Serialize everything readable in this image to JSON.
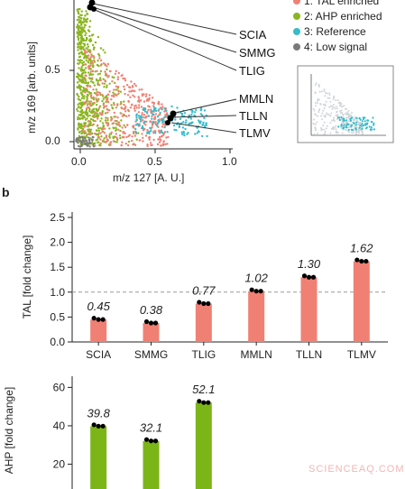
{
  "panel_b_letter": "b",
  "scatter": {
    "xlabel": "m/z 127 [A. U.]",
    "ylabel": "m/z 169 [arb. units]",
    "xticks": [
      "0.0",
      "0.5",
      "1.0"
    ],
    "yticks": [
      "0.0",
      "0.5"
    ],
    "callouts_top": [
      "SCIA",
      "SMMG",
      "TLIG"
    ],
    "callouts_bottom": [
      "MMLN",
      "TLLN",
      "TLMV"
    ],
    "legend": [
      {
        "label": "1: TAL enriched",
        "color": "#f08074"
      },
      {
        "label": "2: AHP enriched",
        "color": "#8ab51f"
      },
      {
        "label": "3: Reference",
        "color": "#36bccb"
      },
      {
        "label": "4: Low signal",
        "color": "#7a7a7a"
      }
    ]
  },
  "chart_data": [
    {
      "type": "bar",
      "ylabel": "TAL [fold change]",
      "categories": [
        "SCIA",
        "SMMG",
        "TLIG",
        "MMLN",
        "TLLN",
        "TLMV"
      ],
      "values": [
        0.45,
        0.38,
        0.77,
        1.02,
        1.3,
        1.62
      ],
      "value_labels": [
        "0.45",
        "0.38",
        "0.77",
        "1.02",
        "1.30",
        "1.62"
      ],
      "ylim": [
        0,
        2.5
      ],
      "yticks": [
        "0.0",
        "0.5",
        "1.0",
        "1.5",
        "2.0",
        "2.5"
      ],
      "reference_line": 1.0,
      "color": "#f08074"
    },
    {
      "type": "bar",
      "ylabel": "AHP [fold change]",
      "values": [
        39.8,
        32.1,
        52.1
      ],
      "value_labels": [
        "39.8",
        "32.1",
        "52.1"
      ],
      "yticks": [
        "20",
        "40",
        "60"
      ],
      "color": "#7cb518"
    }
  ],
  "watermark": "SCIENCEAQ.COM"
}
